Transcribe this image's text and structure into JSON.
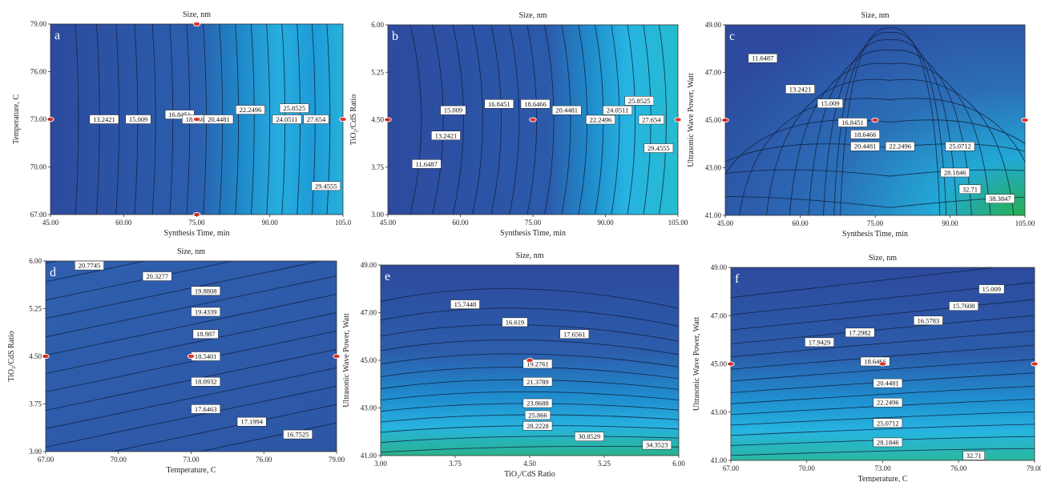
{
  "colors": {
    "field_base": "#2b4fa2",
    "field_mid": "#1f86c6",
    "field_hi": "#23b5e1",
    "field_green": "#2bb24a",
    "contour": "#12223f",
    "design_point": "#e0322a"
  },
  "chart_data": [
    {
      "type": "contour",
      "panel_label": "a",
      "title": "Size, nm",
      "xlabel": "Synthesis Time, min",
      "ylabel": "Temperature, C",
      "xlim": [
        45,
        105
      ],
      "ylim": [
        67,
        79
      ],
      "x_ticks": [
        "45.00",
        "60.00",
        "75.00",
        "90.00",
        "105.0"
      ],
      "y_ticks": [
        "67.00",
        "70.00",
        "73.00",
        "76.00",
        "79.00"
      ],
      "contour_labels": [
        {
          "text": "13.2421",
          "x": 56,
          "y": 73.0
        },
        {
          "text": "15.009",
          "x": 63,
          "y": 73.0
        },
        {
          "text": "16.8451",
          "x": 71.5,
          "y": 73.3
        },
        {
          "text": "18.6466",
          "x": 75,
          "y": 73.0
        },
        {
          "text": "20.4481",
          "x": 79.5,
          "y": 73.0
        },
        {
          "text": "22.2496",
          "x": 86,
          "y": 73.6
        },
        {
          "text": "25.8525",
          "x": 95,
          "y": 73.7
        },
        {
          "text": "24.0511",
          "x": 93.5,
          "y": 73.0
        },
        {
          "text": "27.654",
          "x": 99.5,
          "y": 73.0
        },
        {
          "text": "29.4555",
          "x": 101.5,
          "y": 68.8
        }
      ],
      "design_points": [
        {
          "x": 45,
          "y": 73
        },
        {
          "x": 75,
          "y": 73
        },
        {
          "x": 105,
          "y": 73
        },
        {
          "x": 75,
          "y": 79
        },
        {
          "x": 75,
          "y": 67
        }
      ]
    },
    {
      "type": "contour",
      "panel_label": "b",
      "title": "Size, nm",
      "xlabel": "Synthesis Time, min",
      "ylabel": "TiO₂/CdS Ratio",
      "xlim": [
        45,
        105
      ],
      "ylim": [
        3.0,
        6.0
      ],
      "x_ticks": [
        "45.00",
        "60.00",
        "75.00",
        "90.00",
        "105.00"
      ],
      "y_ticks": [
        "3.00",
        "3.75",
        "4.50",
        "5.25",
        "6.00"
      ],
      "contour_labels": [
        {
          "text": "11.6487",
          "x": 53,
          "y": 3.8
        },
        {
          "text": "13.2421",
          "x": 57,
          "y": 4.25
        },
        {
          "text": "15.009",
          "x": 58.5,
          "y": 4.65
        },
        {
          "text": "16.8451",
          "x": 68,
          "y": 4.75
        },
        {
          "text": "18.6466",
          "x": 75.5,
          "y": 4.75
        },
        {
          "text": "20.4481",
          "x": 82,
          "y": 4.65
        },
        {
          "text": "22.2496",
          "x": 89,
          "y": 4.5
        },
        {
          "text": "24.0511",
          "x": 92.5,
          "y": 4.65
        },
        {
          "text": "25.8525",
          "x": 97,
          "y": 4.8
        },
        {
          "text": "27.654",
          "x": 99.5,
          "y": 4.5
        },
        {
          "text": "29.4555",
          "x": 101,
          "y": 4.05
        }
      ],
      "design_points": [
        {
          "x": 45,
          "y": 4.5
        },
        {
          "x": 75,
          "y": 4.5
        },
        {
          "x": 105,
          "y": 4.5
        }
      ]
    },
    {
      "type": "contour",
      "panel_label": "c",
      "title": "Size, nm",
      "xlabel": "Synthesis Time, min",
      "ylabel": "Ultrasonic Wave Power, Watt",
      "xlim": [
        45,
        105
      ],
      "ylim": [
        41,
        49
      ],
      "x_ticks": [
        "45.00",
        "60.00",
        "75.00",
        "90.00",
        "105.00"
      ],
      "y_ticks": [
        "41.00",
        "43.00",
        "45.00",
        "47.00",
        "49.00"
      ],
      "contour_labels": [
        {
          "text": "11.6487",
          "x": 52.5,
          "y": 47.6
        },
        {
          "text": "13.2421",
          "x": 60,
          "y": 46.3
        },
        {
          "text": "15.009",
          "x": 66,
          "y": 45.7
        },
        {
          "text": "16.8451",
          "x": 70.5,
          "y": 44.9
        },
        {
          "text": "18.6466",
          "x": 73,
          "y": 44.4
        },
        {
          "text": "20.4481",
          "x": 73,
          "y": 43.9
        },
        {
          "text": "22.2496",
          "x": 80,
          "y": 43.9
        },
        {
          "text": "25.0712",
          "x": 92,
          "y": 43.9
        },
        {
          "text": "28.1846",
          "x": 91,
          "y": 42.8
        },
        {
          "text": "32.71",
          "x": 94,
          "y": 42.1
        },
        {
          "text": "38.3847",
          "x": 100,
          "y": 41.7
        }
      ],
      "design_points": [
        {
          "x": 45,
          "y": 45
        },
        {
          "x": 75,
          "y": 45
        },
        {
          "x": 105,
          "y": 45
        }
      ]
    },
    {
      "type": "contour",
      "panel_label": "d",
      "title": "Size, nm",
      "xlabel": "Temperature, C",
      "ylabel": "TiO₂/CdS Ratio",
      "xlim": [
        67,
        79
      ],
      "ylim": [
        3.0,
        6.0
      ],
      "x_ticks": [
        "67.00",
        "70.00",
        "73.00",
        "76.00",
        "79.00"
      ],
      "y_ticks": [
        "3.00",
        "3.75",
        "4.50",
        "5.25",
        "6.00"
      ],
      "contour_labels": [
        {
          "text": "20.7745",
          "x": 68.8,
          "y": 5.93
        },
        {
          "text": "20.3277",
          "x": 71.6,
          "y": 5.76
        },
        {
          "text": "19.8808",
          "x": 73.6,
          "y": 5.53
        },
        {
          "text": "19.4339",
          "x": 73.6,
          "y": 5.2
        },
        {
          "text": "18.987",
          "x": 73.6,
          "y": 4.85
        },
        {
          "text": "18.5401",
          "x": 73.6,
          "y": 4.5
        },
        {
          "text": "18.0932",
          "x": 73.6,
          "y": 4.1
        },
        {
          "text": "17.6463",
          "x": 73.6,
          "y": 3.67
        },
        {
          "text": "17.1994",
          "x": 75.5,
          "y": 3.47
        },
        {
          "text": "16.7525",
          "x": 77.4,
          "y": 3.27
        }
      ],
      "design_points": [
        {
          "x": 67,
          "y": 4.5
        },
        {
          "x": 73,
          "y": 4.5
        },
        {
          "x": 79,
          "y": 4.5
        }
      ]
    },
    {
      "type": "contour",
      "panel_label": "e",
      "title": "Size, nm",
      "xlabel": "TiO₂/CdS Ratio",
      "ylabel": "Ultrasonic Wave Power, Watt",
      "xlim": [
        3.0,
        6.0
      ],
      "ylim": [
        41,
        49
      ],
      "x_ticks": [
        "3.00",
        "3.75",
        "4.50",
        "5.25",
        "6.00"
      ],
      "y_ticks": [
        "41.00",
        "43.00",
        "45.00",
        "47.00",
        "49.00"
      ],
      "contour_labels": [
        {
          "text": "15.7448",
          "x": 3.85,
          "y": 47.35
        },
        {
          "text": "16.619",
          "x": 4.35,
          "y": 46.6
        },
        {
          "text": "17.6561",
          "x": 4.95,
          "y": 46.1
        },
        {
          "text": "19.2761",
          "x": 4.58,
          "y": 44.85
        },
        {
          "text": "21.3789",
          "x": 4.58,
          "y": 44.1
        },
        {
          "text": "23.8688",
          "x": 4.58,
          "y": 43.2
        },
        {
          "text": "25.866",
          "x": 4.58,
          "y": 42.7
        },
        {
          "text": "28.2228",
          "x": 4.58,
          "y": 42.25
        },
        {
          "text": "30.8529",
          "x": 5.1,
          "y": 41.8
        },
        {
          "text": "34.3523",
          "x": 5.78,
          "y": 41.45
        }
      ],
      "design_points": [
        {
          "x": 4.5,
          "y": 45
        }
      ]
    },
    {
      "type": "contour",
      "panel_label": "f",
      "title": "Size, nm",
      "xlabel": "Temperature, C",
      "ylabel": "Ultrasonic Wave Power, Watt",
      "xlim": [
        67,
        79
      ],
      "ylim": [
        41,
        49
      ],
      "x_ticks": [
        "67.00",
        "70.00",
        "73.00",
        "76.00",
        "79.00"
      ],
      "y_ticks": [
        "41.00",
        "43.00",
        "45.00",
        "47.00",
        "49.00"
      ],
      "contour_labels": [
        {
          "text": "15.009",
          "x": 77.3,
          "y": 48.1
        },
        {
          "text": "15.7608",
          "x": 76.2,
          "y": 47.4
        },
        {
          "text": "16.5783",
          "x": 74.8,
          "y": 46.8
        },
        {
          "text": "17.2982",
          "x": 72.1,
          "y": 46.3
        },
        {
          "text": "17.9429",
          "x": 70.5,
          "y": 45.9
        },
        {
          "text": "18.6466",
          "x": 72.7,
          "y": 45.1
        },
        {
          "text": "20.4481",
          "x": 73.2,
          "y": 44.2
        },
        {
          "text": "22.2496",
          "x": 73.2,
          "y": 43.4
        },
        {
          "text": "25.0712",
          "x": 73.2,
          "y": 42.55
        },
        {
          "text": "28.1846",
          "x": 73.2,
          "y": 41.75
        },
        {
          "text": "32.71",
          "x": 76.6,
          "y": 41.2
        }
      ],
      "design_points": [
        {
          "x": 67,
          "y": 45
        },
        {
          "x": 73,
          "y": 45
        },
        {
          "x": 79,
          "y": 45
        }
      ]
    }
  ]
}
